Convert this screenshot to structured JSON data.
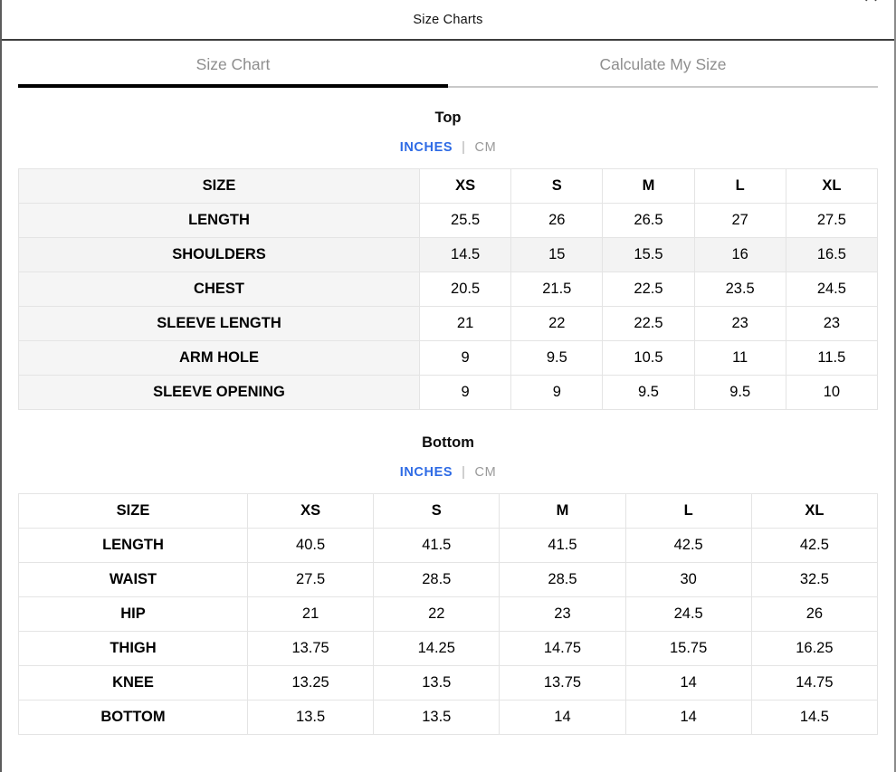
{
  "modal": {
    "title": "Size Charts",
    "close_icon": "✕"
  },
  "tabs": [
    {
      "label": "Size Chart",
      "active": true
    },
    {
      "label": "Calculate My Size",
      "active": false
    }
  ],
  "colors": {
    "accent_blue": "#2e6be5",
    "tab_inactive_text": "#8e8e8e",
    "active_tab_underline": "#000000",
    "inactive_tab_underline": "#c9c9c9",
    "label_column_bg": "#f5f5f5",
    "highlighted_row_bg": "#f3f3f3",
    "table_border": "#e4e4e4"
  },
  "sections": [
    {
      "title": "Top",
      "units": {
        "selected": "INCHES",
        "divider": "|",
        "other": "CM"
      },
      "table": {
        "header": [
          "SIZE",
          "XS",
          "S",
          "M",
          "L",
          "XL"
        ],
        "rows": [
          {
            "label": "LENGTH",
            "values": [
              "25.5",
              "26",
              "26.5",
              "27",
              "27.5"
            ]
          },
          {
            "label": "SHOULDERS",
            "values": [
              "14.5",
              "15",
              "15.5",
              "16",
              "16.5"
            ],
            "highlighted": true
          },
          {
            "label": "CHEST",
            "values": [
              "20.5",
              "21.5",
              "22.5",
              "23.5",
              "24.5"
            ]
          },
          {
            "label": "SLEEVE LENGTH",
            "values": [
              "21",
              "22",
              "22.5",
              "23",
              "23"
            ]
          },
          {
            "label": "ARM HOLE",
            "values": [
              "9",
              "9.5",
              "10.5",
              "11",
              "11.5"
            ]
          },
          {
            "label": "SLEEVE OPENING",
            "values": [
              "9",
              "9",
              "9.5",
              "9.5",
              "10"
            ]
          }
        ]
      }
    },
    {
      "title": "Bottom",
      "units": {
        "selected": "INCHES",
        "divider": "|",
        "other": "CM"
      },
      "table": {
        "header": [
          "SIZE",
          "XS",
          "S",
          "M",
          "L",
          "XL"
        ],
        "rows": [
          {
            "label": "LENGTH",
            "values": [
              "40.5",
              "41.5",
              "41.5",
              "42.5",
              "42.5"
            ]
          },
          {
            "label": "WAIST",
            "values": [
              "27.5",
              "28.5",
              "28.5",
              "30",
              "32.5"
            ]
          },
          {
            "label": "HIP",
            "values": [
              "21",
              "22",
              "23",
              "24.5",
              "26"
            ]
          },
          {
            "label": "THIGH",
            "values": [
              "13.75",
              "14.25",
              "14.75",
              "15.75",
              "16.25"
            ]
          },
          {
            "label": "KNEE",
            "values": [
              "13.25",
              "13.5",
              "13.75",
              "14",
              "14.75"
            ]
          },
          {
            "label": "BOTTOM",
            "values": [
              "13.5",
              "13.5",
              "14",
              "14",
              "14.5"
            ]
          }
        ]
      }
    }
  ]
}
